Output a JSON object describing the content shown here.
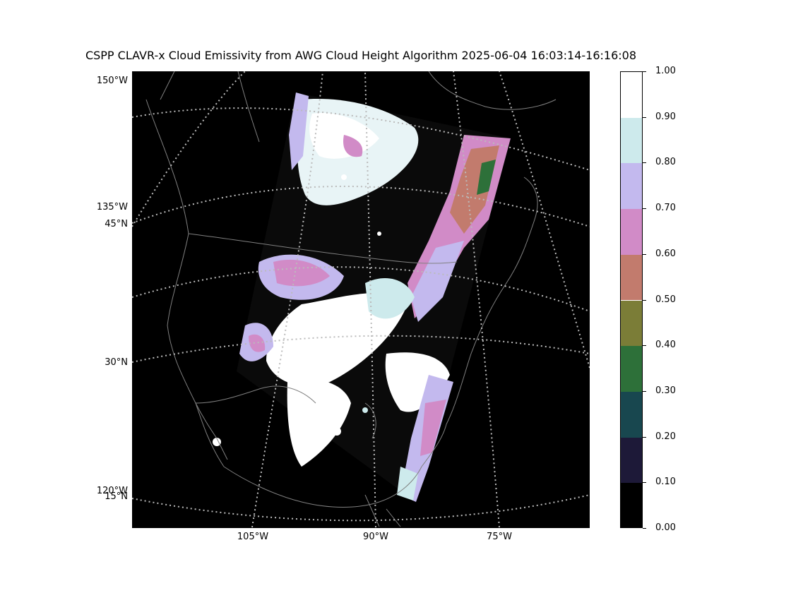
{
  "title": "CSPP CLAVR-x Cloud Emissivity from AWG Cloud Height Algorithm 2025-06-04 16:03:14-16:16:08",
  "map": {
    "background_color": "#000000",
    "coastline_color": "#808080",
    "gridline_color": "#bbbbbb",
    "lat_labels": [
      "150°W",
      "135°W",
      "45°N",
      "30°N",
      "120°W",
      "15°N"
    ],
    "lon_labels": [
      "105°W",
      "90°W",
      "75°W"
    ]
  },
  "colorbar": {
    "segments": [
      {
        "from": 0.0,
        "to": 0.1,
        "color": "#000000"
      },
      {
        "from": 0.1,
        "to": 0.2,
        "color": "#1d1938"
      },
      {
        "from": 0.2,
        "to": 0.3,
        "color": "#18474f"
      },
      {
        "from": 0.3,
        "to": 0.4,
        "color": "#2d7039"
      },
      {
        "from": 0.4,
        "to": 0.5,
        "color": "#7b7d37"
      },
      {
        "from": 0.5,
        "to": 0.6,
        "color": "#c27b6d"
      },
      {
        "from": 0.6,
        "to": 0.7,
        "color": "#d18bc7"
      },
      {
        "from": 0.7,
        "to": 0.8,
        "color": "#c3b9ee"
      },
      {
        "from": 0.8,
        "to": 0.9,
        "color": "#cdeaec"
      },
      {
        "from": 0.9,
        "to": 1.0,
        "color": "#ffffff"
      }
    ],
    "tick_labels": [
      "1.00",
      "0.90",
      "0.80",
      "0.70",
      "0.60",
      "0.50",
      "0.40",
      "0.30",
      "0.20",
      "0.10",
      "0.00"
    ]
  }
}
